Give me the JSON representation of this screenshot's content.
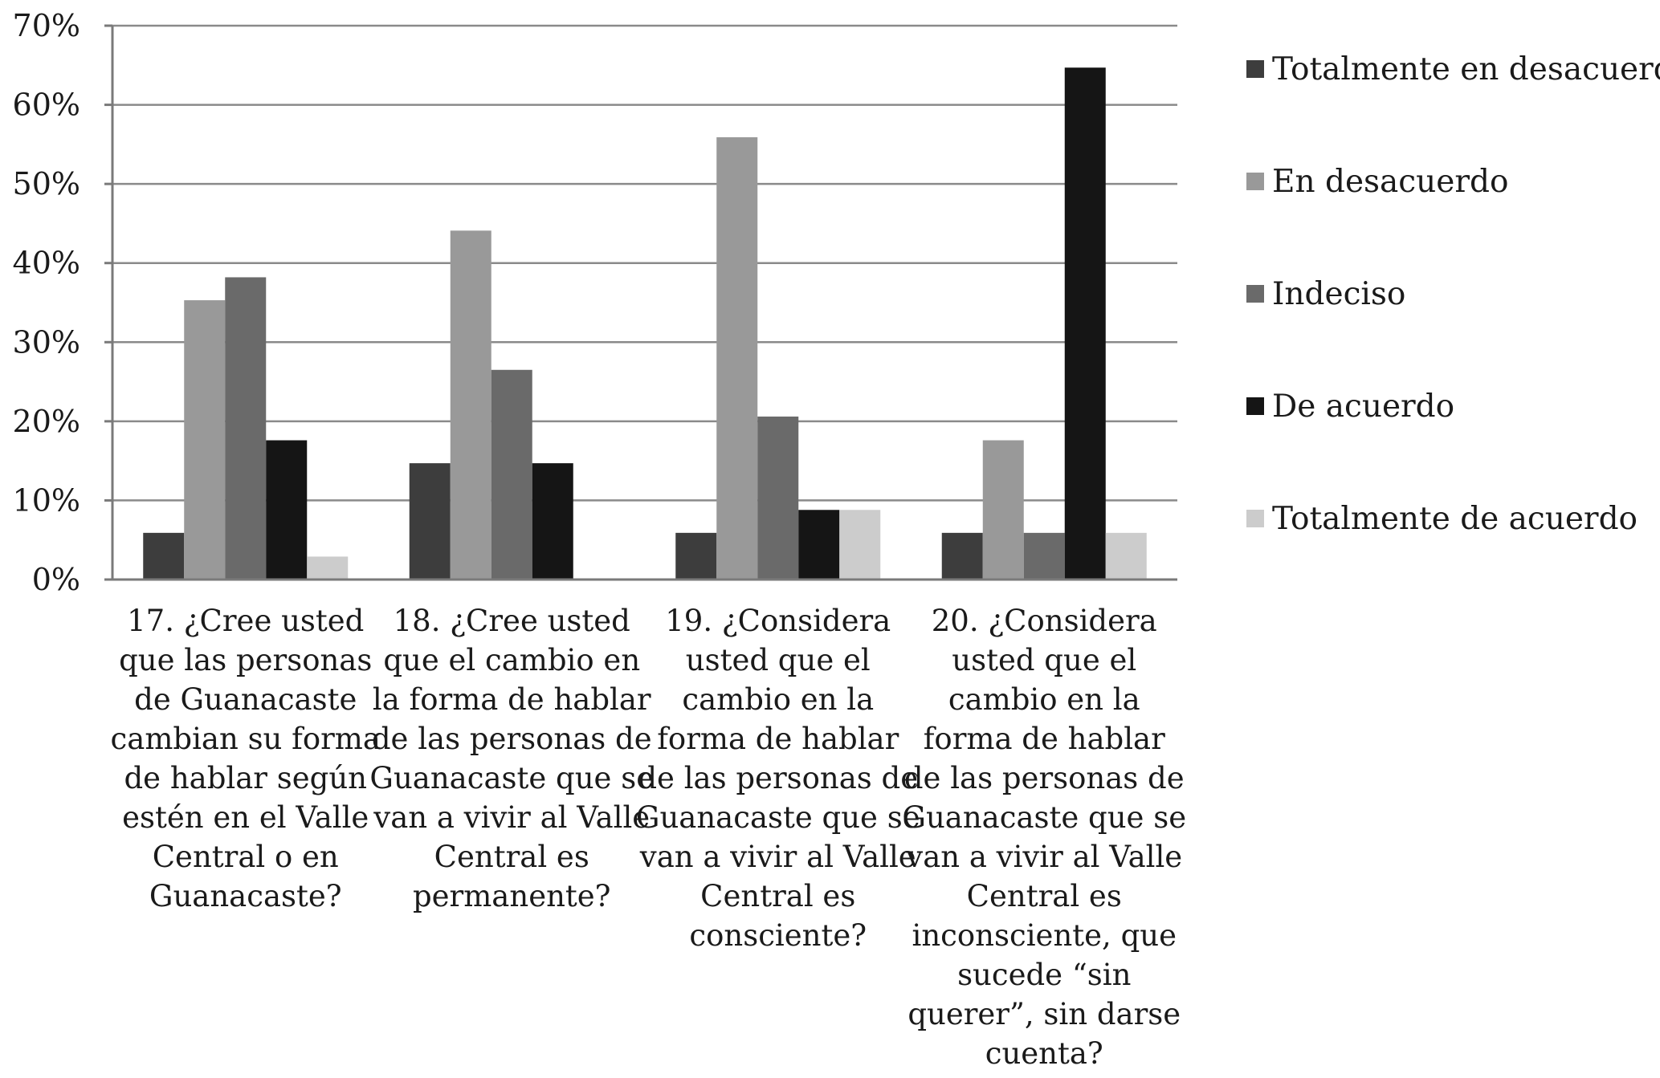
{
  "chart_data": {
    "type": "bar",
    "title": "",
    "xlabel": "",
    "ylabel": "",
    "ylim": [
      0,
      0.7
    ],
    "yticks": [
      "0%",
      "10%",
      "20%",
      "30%",
      "40%",
      "50%",
      "60%",
      "70%"
    ],
    "grid": true,
    "legend_position": "right",
    "categories": [
      [
        "17. ¿Cree usted",
        "que las personas",
        "de Guanacaste",
        "cambian su forma",
        "de hablar según",
        "estén en el Valle",
        "Central o en",
        "Guanacaste?"
      ],
      [
        "18. ¿Cree usted",
        "que el cambio en",
        "la forma de hablar",
        "de las personas de",
        "Guanacaste que se",
        "van a vivir al Valle",
        "Central es",
        "permanente?"
      ],
      [
        "19. ¿Considera",
        "usted que el",
        "cambio en la",
        "forma de hablar",
        "de las personas de",
        "Guanacaste que se",
        "van a vivir al Valle",
        "Central es",
        "consciente?"
      ],
      [
        "20. ¿Considera",
        "usted que el",
        "cambio en la",
        "forma de hablar",
        "de las personas de",
        "Guanacaste que se",
        "van a vivir al Valle",
        "Central es",
        "inconsciente, que",
        "sucede “sin",
        "querer”, sin darse",
        "cuenta?"
      ]
    ],
    "series": [
      {
        "name": "Totalmente en desacuerdo",
        "color": "#3d3d3d",
        "values": [
          0.059,
          0.147,
          0.059,
          0.059
        ]
      },
      {
        "name": "En desacuerdo",
        "color": "#999999",
        "values": [
          0.353,
          0.441,
          0.559,
          0.176
        ]
      },
      {
        "name": "Indeciso",
        "color": "#6a6a6a",
        "values": [
          0.382,
          0.265,
          0.206,
          0.059
        ]
      },
      {
        "name": "De acuerdo",
        "color": "#151515",
        "values": [
          0.176,
          0.147,
          0.088,
          0.647
        ]
      },
      {
        "name": "Totalmente de acuerdo",
        "color": "#cccccc",
        "values": [
          0.029,
          0.0,
          0.088,
          0.059
        ]
      }
    ]
  }
}
